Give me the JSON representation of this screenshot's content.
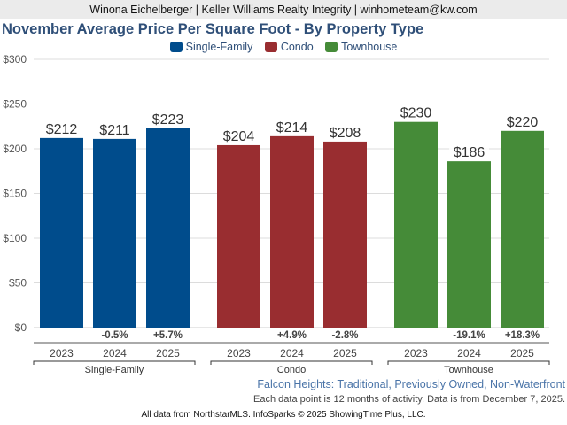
{
  "header": {
    "contact": "Winona Eichelberger | Keller Williams Realty Integrity | winhometeam@kw.com"
  },
  "chart_data": {
    "type": "bar",
    "title": "November Average Price Per Square Foot - By Property Type",
    "xlabel": "",
    "ylabel": "",
    "ylim": [
      0,
      300
    ],
    "yticks": [
      0,
      50,
      100,
      150,
      200,
      250,
      300
    ],
    "ytick_labels": [
      "$0",
      "$50",
      "$100",
      "$150",
      "$200",
      "$250",
      "$300"
    ],
    "grid": true,
    "legend_position": "top-center",
    "categories": [
      "2023",
      "2024",
      "2025"
    ],
    "series": [
      {
        "name": "Single-Family",
        "color": "#004c8c",
        "values": [
          212,
          211,
          223
        ],
        "value_labels": [
          "$212",
          "$211",
          "$223"
        ],
        "pct_change": [
          "",
          "-0.5%",
          "+5.7%"
        ]
      },
      {
        "name": "Condo",
        "color": "#992d30",
        "values": [
          204,
          214,
          208
        ],
        "value_labels": [
          "$204",
          "$214",
          "$208"
        ],
        "pct_change": [
          "",
          "+4.9%",
          "-2.8%"
        ]
      },
      {
        "name": "Townhouse",
        "color": "#458b38",
        "values": [
          230,
          186,
          220
        ],
        "value_labels": [
          "$230",
          "$186",
          "$220"
        ],
        "pct_change": [
          "",
          "-19.1%",
          "+18.3%"
        ]
      }
    ]
  },
  "footer": {
    "geography": "Falcon Heights: Traditional, Previously Owned, Non-Waterfront",
    "note": "Each data point is 12 months of activity. Data is from December 7, 2025.",
    "credit": "All data from NorthstarMLS. InfoSparks © 2025 ShowingTime Plus, LLC."
  }
}
